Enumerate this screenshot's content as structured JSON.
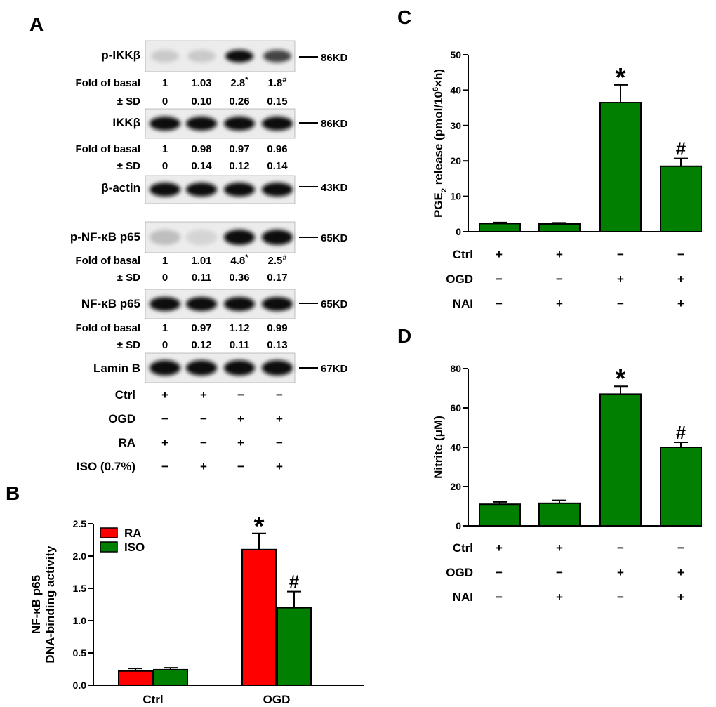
{
  "panels": {
    "a": "A",
    "b": "B",
    "c": "C",
    "d": "D"
  },
  "blots": [
    {
      "label": "p-IKKβ",
      "kd": "86KD",
      "intensity": [
        0.15,
        0.15,
        1.0,
        0.75
      ],
      "fold": {
        "label": "Fold of basal",
        "values": [
          "1",
          "1.03",
          "2.8",
          "1.8"
        ],
        "marks": [
          "",
          "",
          "*",
          "#"
        ]
      },
      "sd": {
        "label": "± SD",
        "values": [
          "0",
          "0.10",
          "0.26",
          "0.15"
        ]
      }
    },
    {
      "label": "IKKβ",
      "kd": "86KD",
      "intensity": [
        1.0,
        1.0,
        1.0,
        1.0
      ],
      "fold": {
        "label": "Fold of basal",
        "values": [
          "1",
          "0.98",
          "0.97",
          "0.96"
        ],
        "marks": [
          "",
          "",
          "",
          ""
        ]
      },
      "sd": {
        "label": "± SD",
        "values": [
          "0",
          "0.14",
          "0.12",
          "0.14"
        ]
      }
    },
    {
      "label": "β-actin",
      "kd": "43KD",
      "intensity": [
        1.0,
        1.0,
        1.0,
        1.0
      ]
    },
    {
      "label": "p-NF-κB p65",
      "kd": "65KD",
      "intensity": [
        0.2,
        0.1,
        1.0,
        1.0
      ],
      "fold": {
        "label": "Fold of basal",
        "values": [
          "1",
          "1.01",
          "4.8",
          "2.5"
        ],
        "marks": [
          "",
          "",
          "*",
          "#"
        ]
      },
      "sd": {
        "label": "± SD",
        "values": [
          "0",
          "0.11",
          "0.36",
          "0.17"
        ]
      }
    },
    {
      "label": "NF-κB p65",
      "kd": "65KD",
      "intensity": [
        1.0,
        1.0,
        1.0,
        1.0
      ],
      "fold": {
        "label": "Fold of basal",
        "values": [
          "1",
          "0.97",
          "1.12",
          "0.99"
        ],
        "marks": [
          "",
          "",
          "",
          ""
        ]
      },
      "sd": {
        "label": "± SD",
        "values": [
          "0",
          "0.12",
          "0.11",
          "0.13"
        ]
      }
    },
    {
      "label": "Lamin B",
      "kd": "67KD",
      "intensity": [
        1.0,
        1.0,
        1.0,
        1.0
      ]
    }
  ],
  "conditions_a": [
    {
      "name": "Ctrl",
      "signs": [
        "+",
        "+",
        "−",
        "−"
      ]
    },
    {
      "name": "OGD",
      "signs": [
        "−",
        "−",
        "+",
        "+"
      ]
    },
    {
      "name": "RA",
      "signs": [
        "+",
        "−",
        "+",
        "−"
      ]
    },
    {
      "name": "ISO (0.7%)",
      "signs": [
        "−",
        "+",
        "−",
        "+"
      ]
    }
  ],
  "conditions_cd": [
    {
      "name": "Ctrl",
      "signs": [
        "+",
        "+",
        "−",
        "−"
      ]
    },
    {
      "name": "OGD",
      "signs": [
        "−",
        "−",
        "+",
        "+"
      ]
    },
    {
      "name": "NAI",
      "signs": [
        "−",
        "+",
        "−",
        "+"
      ]
    }
  ],
  "colors": {
    "red": "#ff0000",
    "green": "#007f00"
  },
  "chart_data": [
    {
      "id": "B",
      "type": "bar",
      "categories": [
        "Ctrl",
        "OGD"
      ],
      "series": [
        {
          "name": "RA",
          "color": "#ff0000",
          "values": [
            0.22,
            2.1
          ],
          "errors": [
            0.04,
            0.25
          ],
          "marks": [
            "",
            "*"
          ]
        },
        {
          "name": "ISO",
          "color": "#007f00",
          "values": [
            0.24,
            1.2
          ],
          "errors": [
            0.03,
            0.25
          ],
          "marks": [
            "",
            "#"
          ]
        }
      ],
      "ylabel_line1": "NF-κB p65",
      "ylabel_line2": "DNA-binding activity",
      "ylim": [
        0,
        2.5
      ],
      "yticks": [
        0.0,
        0.5,
        1.0,
        1.5,
        2.0,
        2.5
      ],
      "ytick_labels": [
        "0.0",
        "0.5",
        "1.0",
        "1.5",
        "2.0",
        "2.5"
      ],
      "legend": "top-left"
    },
    {
      "id": "C",
      "type": "bar",
      "values": [
        2.3,
        2.2,
        36.5,
        18.5
      ],
      "errors": [
        0.3,
        0.3,
        5.0,
        2.2
      ],
      "marks": [
        "",
        "",
        "*",
        "#"
      ],
      "ylabel": "PGE2 release (pmol/10^6×h)",
      "ylim": [
        0,
        50
      ],
      "yticks": [
        0,
        10,
        20,
        30,
        40,
        50
      ],
      "ytick_labels": [
        "0",
        "10",
        "20",
        "30",
        "40",
        "50"
      ],
      "color": "#007f00"
    },
    {
      "id": "D",
      "type": "bar",
      "values": [
        11,
        11.5,
        67,
        40
      ],
      "errors": [
        1.2,
        1.5,
        4.0,
        2.5
      ],
      "marks": [
        "",
        "",
        "*",
        "#"
      ],
      "ylabel": "Nitrite (μM)",
      "ylim": [
        0,
        80
      ],
      "yticks": [
        0,
        20,
        40,
        60,
        80
      ],
      "ytick_labels": [
        "0",
        "20",
        "40",
        "60",
        "80"
      ],
      "color": "#007f00"
    }
  ]
}
